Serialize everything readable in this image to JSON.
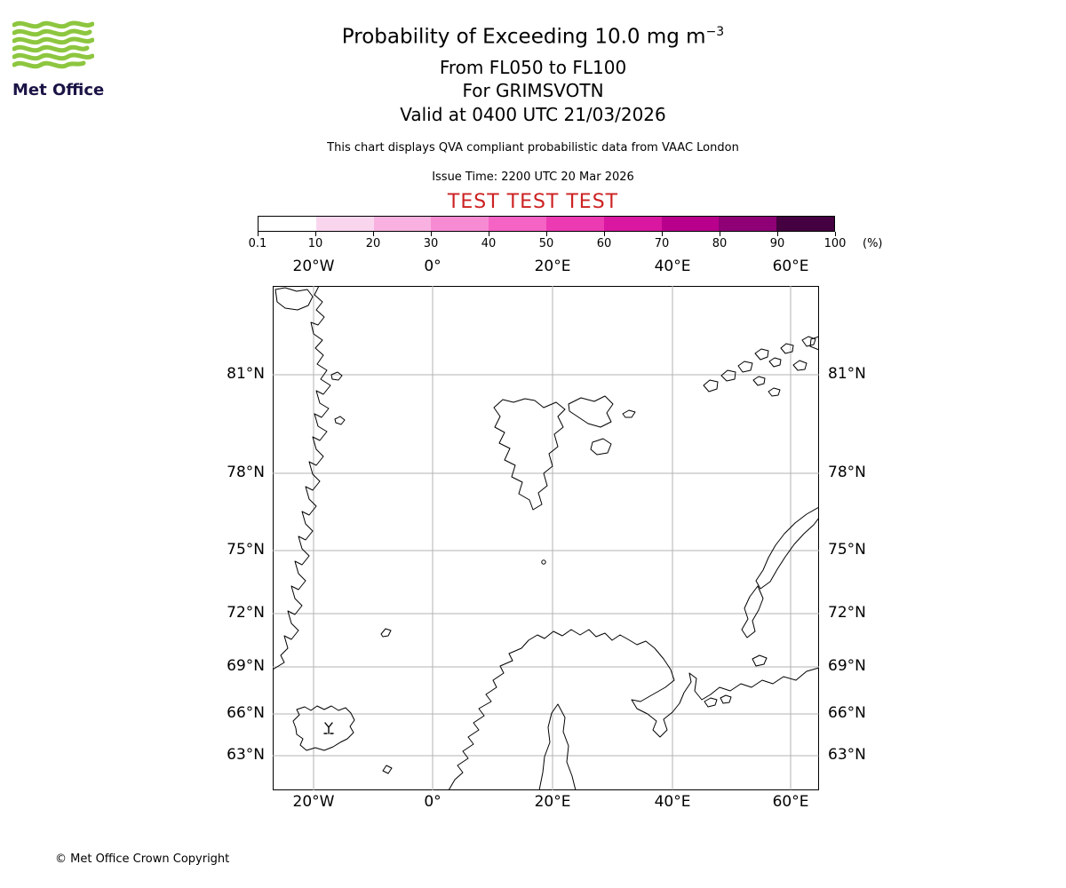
{
  "logo": {
    "brand": "Met Office",
    "green": "#8dc63f"
  },
  "header": {
    "title_main": "Probability of Exceeding 10.0 mg m",
    "title_exponent": "−3",
    "subtitle_flight_levels": "From FL050 to FL100",
    "subtitle_volcano": "For GRIMSVOTN",
    "subtitle_valid": "Valid at 0400 UTC 21/03/2026",
    "qva_note": "This chart displays QVA compliant probabilistic data from VAAC London",
    "issue_time": "Issue Time: 2200 UTC 20 Mar 2026",
    "test_banner": "TEST TEST TEST",
    "test_color": "#cc2222"
  },
  "colorbar": {
    "ticks": [
      "0.1",
      "10",
      "20",
      "30",
      "40",
      "50",
      "60",
      "70",
      "80",
      "90",
      "100"
    ],
    "unit": "(%)",
    "colors": [
      "#ffffff",
      "#fad6ee",
      "#f8b1e0",
      "#f78bd3",
      "#f563c4",
      "#ec3ab3",
      "#d917a0",
      "#b8008d",
      "#8f0076",
      "#440040"
    ]
  },
  "map": {
    "lon_labels": [
      "20°W",
      "0°",
      "20°E",
      "40°E",
      "60°E"
    ],
    "lat_labels": [
      "81°N",
      "78°N",
      "75°N",
      "72°N",
      "69°N",
      "66°N",
      "63°N"
    ]
  },
  "footer": {
    "copyright": "© Met Office Crown Copyright"
  }
}
